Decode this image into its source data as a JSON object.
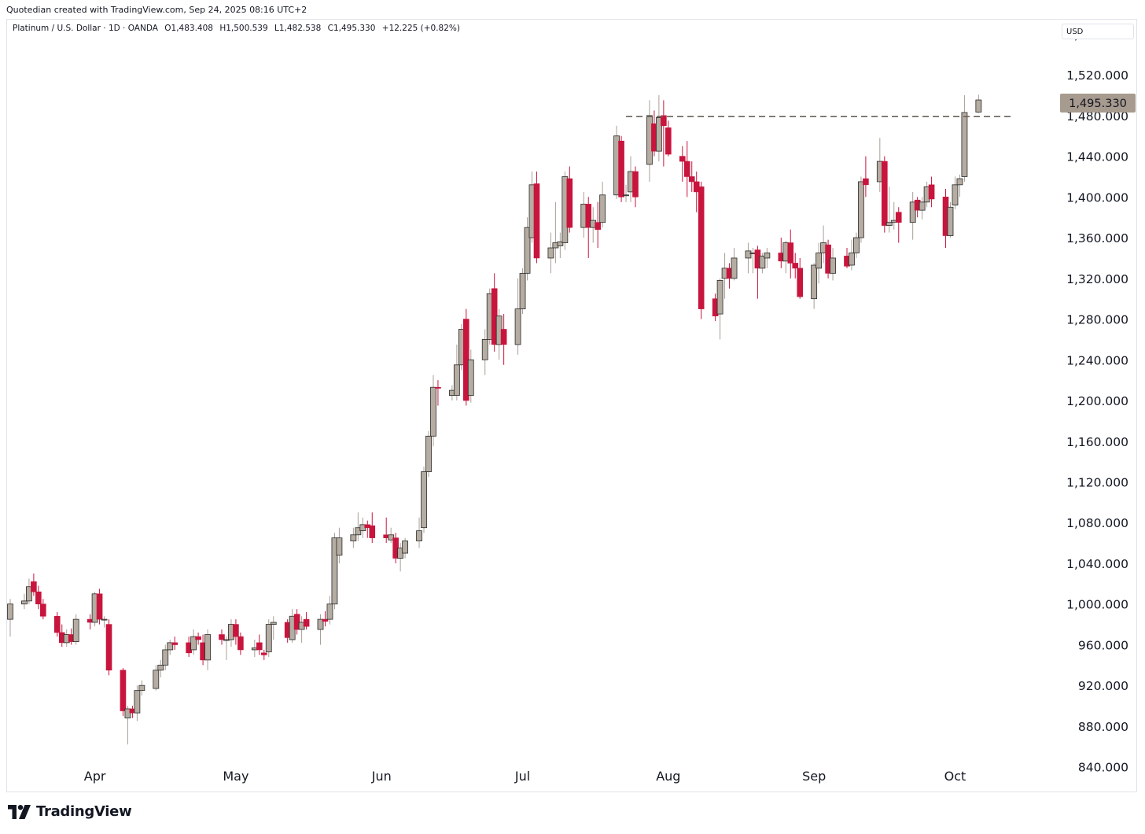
{
  "caption": "Quotedian created with TradingView.com, Sep 24, 2025 08:16 UTC+2",
  "legend": {
    "symbol": "Platinum / U.S. Dollar · 1D · OANDA",
    "open": "O1,483.408",
    "high": "H1,500.539",
    "low": "L1,482.538",
    "close": "C1,495.330",
    "change": "+12.225 (+0.82%)"
  },
  "currency_button": "USD",
  "last_price_label": "1,495.330",
  "brand": "TradingView",
  "colors": {
    "up_body": "#b5aca2",
    "down_body": "#c8153d",
    "wick_up": "#a89f95",
    "wick_down": "#c8153d",
    "price_tag": "#a79a8e",
    "dashed_line": "#6b6158"
  },
  "chart_data": {
    "type": "candlestick",
    "title": "Platinum / U.S. Dollar · 1D · OANDA",
    "currency": "USD",
    "y_axis": {
      "labels": [
        "1,560.000",
        "1,520.000",
        "1,480.000",
        "1,440.000",
        "1,400.000",
        "1,360.000",
        "1,320.000",
        "1,280.000",
        "1,240.000",
        "1,200.000",
        "1,160.000",
        "1,120.000",
        "1,080.000",
        "1,040.000",
        "1,000.000",
        "960.000",
        "920.000",
        "880.000",
        "840.000"
      ],
      "values": [
        1560,
        1520,
        1480,
        1440,
        1400,
        1360,
        1320,
        1280,
        1240,
        1200,
        1160,
        1120,
        1080,
        1040,
        1000,
        960,
        920,
        880,
        840
      ],
      "range": [
        815,
        1575
      ]
    },
    "x_axis": {
      "labels": [
        "Apr",
        "May",
        "Jun",
        "Jul",
        "Aug",
        "Sep",
        "Oct"
      ],
      "label_dates": [
        "2025-04-01",
        "2025-05-01",
        "2025-06-01",
        "2025-07-01",
        "2025-08-01",
        "2025-09-01",
        "2025-10-01"
      ],
      "range": [
        "2025-03-14",
        "2025-10-22"
      ]
    },
    "resistance_line": {
      "price": 1479,
      "from": "2025-07-23",
      "to": "2025-10-03",
      "style": "dashed"
    },
    "candles": [
      {
        "date": "2025-03-14",
        "o": 985,
        "h": 1005,
        "l": 968,
        "c": 1000
      },
      {
        "date": "2025-03-17",
        "o": 1000,
        "h": 1010,
        "l": 995,
        "c": 1003
      },
      {
        "date": "2025-03-18",
        "o": 1003,
        "h": 1025,
        "l": 1000,
        "c": 1017
      },
      {
        "date": "2025-03-19",
        "o": 1022,
        "h": 1030,
        "l": 1008,
        "c": 1012
      },
      {
        "date": "2025-03-20",
        "o": 1012,
        "h": 1018,
        "l": 995,
        "c": 1000
      },
      {
        "date": "2025-03-21",
        "o": 1000,
        "h": 1005,
        "l": 985,
        "c": 988
      },
      {
        "date": "2025-03-24",
        "o": 988,
        "h": 992,
        "l": 968,
        "c": 972
      },
      {
        "date": "2025-03-25",
        "o": 972,
        "h": 980,
        "l": 958,
        "c": 962
      },
      {
        "date": "2025-03-26",
        "o": 962,
        "h": 975,
        "l": 958,
        "c": 970
      },
      {
        "date": "2025-03-27",
        "o": 970,
        "h": 976,
        "l": 960,
        "c": 963
      },
      {
        "date": "2025-03-28",
        "o": 963,
        "h": 990,
        "l": 960,
        "c": 985
      },
      {
        "date": "2025-03-31",
        "o": 985,
        "h": 990,
        "l": 975,
        "c": 982
      },
      {
        "date": "2025-04-01",
        "o": 982,
        "h": 1012,
        "l": 978,
        "c": 1010
      },
      {
        "date": "2025-04-02",
        "o": 1010,
        "h": 1015,
        "l": 980,
        "c": 985
      },
      {
        "date": "2025-04-03",
        "o": 985,
        "h": 988,
        "l": 977,
        "c": 985
      },
      {
        "date": "2025-04-04",
        "o": 980,
        "h": 985,
        "l": 930,
        "c": 935
      },
      {
        "date": "2025-04-07",
        "o": 935,
        "h": 937,
        "l": 890,
        "c": 895
      },
      {
        "date": "2025-04-08",
        "o": 888,
        "h": 900,
        "l": 862,
        "c": 897
      },
      {
        "date": "2025-04-09",
        "o": 897,
        "h": 900,
        "l": 888,
        "c": 893
      },
      {
        "date": "2025-04-10",
        "o": 893,
        "h": 920,
        "l": 885,
        "c": 915
      },
      {
        "date": "2025-04-11",
        "o": 915,
        "h": 925,
        "l": 910,
        "c": 920
      },
      {
        "date": "2025-04-14",
        "o": 917,
        "h": 940,
        "l": 915,
        "c": 935
      },
      {
        "date": "2025-04-15",
        "o": 935,
        "h": 945,
        "l": 928,
        "c": 940
      },
      {
        "date": "2025-04-16",
        "o": 940,
        "h": 960,
        "l": 935,
        "c": 955
      },
      {
        "date": "2025-04-17",
        "o": 955,
        "h": 965,
        "l": 950,
        "c": 962
      },
      {
        "date": "2025-04-18",
        "o": 962,
        "h": 968,
        "l": 955,
        "c": 960
      },
      {
        "date": "2025-04-21",
        "o": 962,
        "h": 968,
        "l": 948,
        "c": 952
      },
      {
        "date": "2025-04-22",
        "o": 955,
        "h": 975,
        "l": 950,
        "c": 968
      },
      {
        "date": "2025-04-23",
        "o": 968,
        "h": 972,
        "l": 960,
        "c": 965
      },
      {
        "date": "2025-04-24",
        "o": 962,
        "h": 970,
        "l": 940,
        "c": 945
      },
      {
        "date": "2025-04-25",
        "o": 945,
        "h": 975,
        "l": 935,
        "c": 970
      },
      {
        "date": "2025-04-28",
        "o": 970,
        "h": 975,
        "l": 960,
        "c": 965
      },
      {
        "date": "2025-04-29",
        "o": 965,
        "h": 968,
        "l": 945,
        "c": 965
      },
      {
        "date": "2025-04-30",
        "o": 965,
        "h": 985,
        "l": 958,
        "c": 980
      },
      {
        "date": "2025-05-01",
        "o": 980,
        "h": 985,
        "l": 960,
        "c": 968
      },
      {
        "date": "2025-05-02",
        "o": 968,
        "h": 972,
        "l": 950,
        "c": 955
      },
      {
        "date": "2025-05-05",
        "o": 955,
        "h": 965,
        "l": 948,
        "c": 957
      },
      {
        "date": "2025-05-06",
        "o": 962,
        "h": 970,
        "l": 950,
        "c": 955
      },
      {
        "date": "2025-05-07",
        "o": 952,
        "h": 955,
        "l": 945,
        "c": 950
      },
      {
        "date": "2025-05-08",
        "o": 953,
        "h": 985,
        "l": 948,
        "c": 980
      },
      {
        "date": "2025-05-09",
        "o": 980,
        "h": 988,
        "l": 965,
        "c": 982
      },
      {
        "date": "2025-05-12",
        "o": 982,
        "h": 985,
        "l": 962,
        "c": 967
      },
      {
        "date": "2025-05-13",
        "o": 965,
        "h": 995,
        "l": 962,
        "c": 988
      },
      {
        "date": "2025-05-14",
        "o": 990,
        "h": 995,
        "l": 970,
        "c": 975
      },
      {
        "date": "2025-05-15",
        "o": 975,
        "h": 988,
        "l": 962,
        "c": 982
      },
      {
        "date": "2025-05-16",
        "o": 985,
        "h": 992,
        "l": 975,
        "c": 978
      },
      {
        "date": "2025-05-19",
        "o": 975,
        "h": 990,
        "l": 960,
        "c": 985
      },
      {
        "date": "2025-05-20",
        "o": 985,
        "h": 993,
        "l": 978,
        "c": 983
      },
      {
        "date": "2025-05-21",
        "o": 985,
        "h": 1008,
        "l": 980,
        "c": 1000
      },
      {
        "date": "2025-05-22",
        "o": 1000,
        "h": 1070,
        "l": 995,
        "c": 1065
      },
      {
        "date": "2025-05-23",
        "o": 1048,
        "h": 1075,
        "l": 1040,
        "c": 1065
      },
      {
        "date": "2025-05-26",
        "o": 1062,
        "h": 1075,
        "l": 1055,
        "c": 1068
      },
      {
        "date": "2025-05-27",
        "o": 1068,
        "h": 1090,
        "l": 1062,
        "c": 1075
      },
      {
        "date": "2025-05-28",
        "o": 1072,
        "h": 1085,
        "l": 1065,
        "c": 1078
      },
      {
        "date": "2025-05-29",
        "o": 1078,
        "h": 1082,
        "l": 1065,
        "c": 1075
      },
      {
        "date": "2025-05-30",
        "o": 1077,
        "h": 1090,
        "l": 1060,
        "c": 1065
      },
      {
        "date": "2025-06-02",
        "o": 1068,
        "h": 1085,
        "l": 1060,
        "c": 1065
      },
      {
        "date": "2025-06-03",
        "o": 1063,
        "h": 1075,
        "l": 1060,
        "c": 1068
      },
      {
        "date": "2025-06-04",
        "o": 1065,
        "h": 1070,
        "l": 1040,
        "c": 1045
      },
      {
        "date": "2025-06-05",
        "o": 1045,
        "h": 1060,
        "l": 1032,
        "c": 1055
      },
      {
        "date": "2025-06-06",
        "o": 1050,
        "h": 1065,
        "l": 1045,
        "c": 1062
      },
      {
        "date": "2025-06-09",
        "o": 1062,
        "h": 1085,
        "l": 1055,
        "c": 1072
      },
      {
        "date": "2025-06-10",
        "o": 1075,
        "h": 1135,
        "l": 1070,
        "c": 1130
      },
      {
        "date": "2025-06-11",
        "o": 1130,
        "h": 1170,
        "l": 1125,
        "c": 1165
      },
      {
        "date": "2025-06-12",
        "o": 1165,
        "h": 1225,
        "l": 1155,
        "c": 1213
      },
      {
        "date": "2025-06-13",
        "o": 1213,
        "h": 1220,
        "l": 1195,
        "c": 1212
      },
      {
        "date": "2025-06-16",
        "o": 1205,
        "h": 1215,
        "l": 1200,
        "c": 1210
      },
      {
        "date": "2025-06-17",
        "o": 1205,
        "h": 1255,
        "l": 1200,
        "c": 1235
      },
      {
        "date": "2025-06-18",
        "o": 1235,
        "h": 1275,
        "l": 1230,
        "c": 1270
      },
      {
        "date": "2025-06-19",
        "o": 1280,
        "h": 1290,
        "l": 1195,
        "c": 1200
      },
      {
        "date": "2025-06-20",
        "o": 1205,
        "h": 1250,
        "l": 1198,
        "c": 1240
      },
      {
        "date": "2025-06-23",
        "o": 1240,
        "h": 1270,
        "l": 1225,
        "c": 1260
      },
      {
        "date": "2025-06-24",
        "o": 1260,
        "h": 1310,
        "l": 1255,
        "c": 1305
      },
      {
        "date": "2025-06-25",
        "o": 1310,
        "h": 1325,
        "l": 1248,
        "c": 1255
      },
      {
        "date": "2025-06-26",
        "o": 1255,
        "h": 1290,
        "l": 1240,
        "c": 1283
      },
      {
        "date": "2025-06-27",
        "o": 1270,
        "h": 1285,
        "l": 1235,
        "c": 1255
      },
      {
        "date": "2025-06-30",
        "o": 1255,
        "h": 1320,
        "l": 1245,
        "c": 1290
      },
      {
        "date": "2025-07-01",
        "o": 1290,
        "h": 1330,
        "l": 1285,
        "c": 1325
      },
      {
        "date": "2025-07-02",
        "o": 1325,
        "h": 1380,
        "l": 1318,
        "c": 1370
      },
      {
        "date": "2025-07-03",
        "o": 1360,
        "h": 1425,
        "l": 1355,
        "c": 1412
      },
      {
        "date": "2025-07-04",
        "o": 1413,
        "h": 1425,
        "l": 1335,
        "c": 1340
      },
      {
        "date": "2025-07-07",
        "o": 1340,
        "h": 1365,
        "l": 1325,
        "c": 1350
      },
      {
        "date": "2025-07-08",
        "o": 1350,
        "h": 1395,
        "l": 1335,
        "c": 1355
      },
      {
        "date": "2025-07-09",
        "o": 1352,
        "h": 1365,
        "l": 1340,
        "c": 1356
      },
      {
        "date": "2025-07-10",
        "o": 1355,
        "h": 1425,
        "l": 1348,
        "c": 1420
      },
      {
        "date": "2025-07-11",
        "o": 1418,
        "h": 1430,
        "l": 1365,
        "c": 1370
      },
      {
        "date": "2025-07-14",
        "o": 1370,
        "h": 1405,
        "l": 1360,
        "c": 1393
      },
      {
        "date": "2025-07-15",
        "o": 1393,
        "h": 1400,
        "l": 1340,
        "c": 1370
      },
      {
        "date": "2025-07-16",
        "o": 1370,
        "h": 1390,
        "l": 1355,
        "c": 1377
      },
      {
        "date": "2025-07-17",
        "o": 1375,
        "h": 1395,
        "l": 1350,
        "c": 1368
      },
      {
        "date": "2025-07-18",
        "o": 1375,
        "h": 1415,
        "l": 1370,
        "c": 1402
      },
      {
        "date": "2025-07-21",
        "o": 1402,
        "h": 1470,
        "l": 1398,
        "c": 1460
      },
      {
        "date": "2025-07-22",
        "o": 1455,
        "h": 1460,
        "l": 1395,
        "c": 1400
      },
      {
        "date": "2025-07-23",
        "o": 1402,
        "h": 1412,
        "l": 1395,
        "c": 1402
      },
      {
        "date": "2025-07-24",
        "o": 1405,
        "h": 1440,
        "l": 1395,
        "c": 1425
      },
      {
        "date": "2025-07-25",
        "o": 1425,
        "h": 1430,
        "l": 1390,
        "c": 1400
      },
      {
        "date": "2025-07-28",
        "o": 1432,
        "h": 1495,
        "l": 1415,
        "c": 1480
      },
      {
        "date": "2025-07-29",
        "o": 1472,
        "h": 1485,
        "l": 1440,
        "c": 1445
      },
      {
        "date": "2025-07-30",
        "o": 1445,
        "h": 1500,
        "l": 1435,
        "c": 1478
      },
      {
        "date": "2025-07-31",
        "o": 1480,
        "h": 1495,
        "l": 1430,
        "c": 1470
      },
      {
        "date": "2025-08-01",
        "o": 1468,
        "h": 1475,
        "l": 1440,
        "c": 1442
      },
      {
        "date": "2025-08-04",
        "o": 1440,
        "h": 1450,
        "l": 1415,
        "c": 1435
      },
      {
        "date": "2025-08-05",
        "o": 1435,
        "h": 1455,
        "l": 1400,
        "c": 1420
      },
      {
        "date": "2025-08-06",
        "o": 1420,
        "h": 1435,
        "l": 1405,
        "c": 1415
      },
      {
        "date": "2025-08-07",
        "o": 1415,
        "h": 1425,
        "l": 1385,
        "c": 1405
      },
      {
        "date": "2025-08-08",
        "o": 1410,
        "h": 1415,
        "l": 1280,
        "c": 1290
      },
      {
        "date": "2025-08-11",
        "o": 1300,
        "h": 1305,
        "l": 1278,
        "c": 1283
      },
      {
        "date": "2025-08-12",
        "o": 1285,
        "h": 1320,
        "l": 1260,
        "c": 1318
      },
      {
        "date": "2025-08-13",
        "o": 1320,
        "h": 1345,
        "l": 1300,
        "c": 1330
      },
      {
        "date": "2025-08-14",
        "o": 1330,
        "h": 1335,
        "l": 1310,
        "c": 1320
      },
      {
        "date": "2025-08-15",
        "o": 1320,
        "h": 1350,
        "l": 1318,
        "c": 1340
      },
      {
        "date": "2025-08-18",
        "o": 1340,
        "h": 1355,
        "l": 1325,
        "c": 1347
      },
      {
        "date": "2025-08-19",
        "o": 1345,
        "h": 1350,
        "l": 1325,
        "c": 1345
      },
      {
        "date": "2025-08-20",
        "o": 1348,
        "h": 1352,
        "l": 1300,
        "c": 1330
      },
      {
        "date": "2025-08-21",
        "o": 1330,
        "h": 1345,
        "l": 1325,
        "c": 1342
      },
      {
        "date": "2025-08-22",
        "o": 1340,
        "h": 1350,
        "l": 1330,
        "c": 1345
      },
      {
        "date": "2025-08-25",
        "o": 1345,
        "h": 1360,
        "l": 1330,
        "c": 1337
      },
      {
        "date": "2025-08-26",
        "o": 1337,
        "h": 1357,
        "l": 1325,
        "c": 1355
      },
      {
        "date": "2025-08-27",
        "o": 1355,
        "h": 1368,
        "l": 1320,
        "c": 1335
      },
      {
        "date": "2025-08-28",
        "o": 1335,
        "h": 1345,
        "l": 1320,
        "c": 1330
      },
      {
        "date": "2025-08-29",
        "o": 1330,
        "h": 1340,
        "l": 1300,
        "c": 1302
      },
      {
        "date": "2025-09-01",
        "o": 1300,
        "h": 1335,
        "l": 1290,
        "c": 1333
      },
      {
        "date": "2025-09-02",
        "o": 1330,
        "h": 1355,
        "l": 1315,
        "c": 1345
      },
      {
        "date": "2025-09-03",
        "o": 1345,
        "h": 1372,
        "l": 1335,
        "c": 1355
      },
      {
        "date": "2025-09-04",
        "o": 1353,
        "h": 1358,
        "l": 1320,
        "c": 1325
      },
      {
        "date": "2025-09-05",
        "o": 1325,
        "h": 1350,
        "l": 1318,
        "c": 1340
      },
      {
        "date": "2025-09-08",
        "o": 1342,
        "h": 1350,
        "l": 1330,
        "c": 1332
      },
      {
        "date": "2025-09-09",
        "o": 1333,
        "h": 1358,
        "l": 1328,
        "c": 1345
      },
      {
        "date": "2025-09-10",
        "o": 1345,
        "h": 1365,
        "l": 1340,
        "c": 1360
      },
      {
        "date": "2025-09-11",
        "o": 1360,
        "h": 1420,
        "l": 1355,
        "c": 1415
      },
      {
        "date": "2025-09-12",
        "o": 1418,
        "h": 1440,
        "l": 1400,
        "c": 1412
      },
      {
        "date": "2025-09-15",
        "o": 1415,
        "h": 1458,
        "l": 1405,
        "c": 1435
      },
      {
        "date": "2025-09-16",
        "o": 1435,
        "h": 1440,
        "l": 1365,
        "c": 1372
      },
      {
        "date": "2025-09-17",
        "o": 1372,
        "h": 1410,
        "l": 1365,
        "c": 1375
      },
      {
        "date": "2025-09-18",
        "o": 1375,
        "h": 1395,
        "l": 1368,
        "c": 1377
      },
      {
        "date": "2025-09-19",
        "o": 1385,
        "h": 1390,
        "l": 1355,
        "c": 1375
      },
      {
        "date": "2025-09-22",
        "o": 1375,
        "h": 1405,
        "l": 1358,
        "c": 1395
      },
      {
        "date": "2025-09-23",
        "o": 1397,
        "h": 1400,
        "l": 1380,
        "c": 1387
      },
      {
        "date": "2025-09-24",
        "o": 1387,
        "h": 1400,
        "l": 1378,
        "c": 1395
      },
      {
        "date": "2025-09-25",
        "o": 1395,
        "h": 1415,
        "l": 1390,
        "c": 1410
      },
      {
        "date": "2025-09-26",
        "o": 1412,
        "h": 1420,
        "l": 1390,
        "c": 1398
      },
      {
        "date": "2025-09-29",
        "o": 1400,
        "h": 1408,
        "l": 1350,
        "c": 1362
      },
      {
        "date": "2025-09-30",
        "o": 1362,
        "h": 1395,
        "l": 1360,
        "c": 1390
      },
      {
        "date": "2025-10-01",
        "o": 1392,
        "h": 1420,
        "l": 1388,
        "c": 1412
      },
      {
        "date": "2025-10-02",
        "o": 1412,
        "h": 1422,
        "l": 1400,
        "c": 1418
      },
      {
        "date": "2025-10-03",
        "o": 1420,
        "h": 1500,
        "l": 1415,
        "c": 1483
      },
      {
        "date": "2025-10-06",
        "o": 1483.408,
        "h": 1500.539,
        "l": 1482.538,
        "c": 1495.33
      }
    ]
  }
}
